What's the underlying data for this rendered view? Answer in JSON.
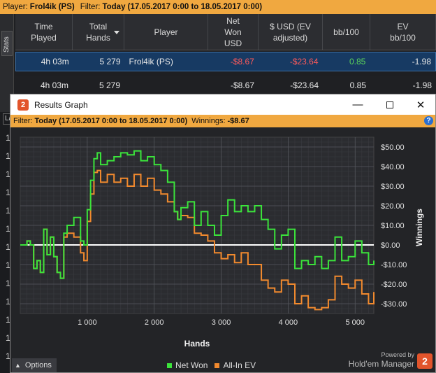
{
  "top_filter": {
    "player_label": "Player:",
    "player_value": "Frol4ik (PS)",
    "filter_label": "Filter:",
    "filter_value": "Today (17.05.2017 0:00 to 18.05.2017 0:00)"
  },
  "stats_tab_label": "Stats",
  "stats_table": {
    "headers": [
      "Time\nPlayed",
      "Total\nHands",
      "Player",
      "Net\nWon\nUSD",
      "$ USD (EV\nadjusted)",
      "bb/100",
      "EV\nbb/100"
    ],
    "sorted_column": "Total Hands",
    "rows": [
      {
        "time": "4h 03m",
        "hands": "5 279",
        "player": "Frol4ik (PS)",
        "net_won": "-$8.67",
        "ev_adjusted": "-$23.64",
        "bb100": "0.85",
        "ev_bb100": "-1.98"
      }
    ],
    "total": {
      "time": "4h 03m",
      "hands": "5 279",
      "player": "",
      "net_won": "-$8.67",
      "ev_adjusted": "-$23.64",
      "bb100": "0.85",
      "ev_bb100": "-1.98"
    }
  },
  "background_left_values": [
    "La",
    "1",
    "1",
    "1",
    "1",
    "1",
    "1",
    "1",
    "1",
    "1",
    "1",
    "1",
    "1",
    "1"
  ],
  "results_window": {
    "title": "Results Graph",
    "app_icon_text": "2",
    "minimize_label": "—",
    "close_label": "✕",
    "filter_label": "Filter:",
    "filter_value": "Today (17.05.2017 0:00 to 18.05.2017 0:00)",
    "winnings_label": "Winnings:",
    "winnings_value": "-$8.67",
    "help_label": "?",
    "options_label": "Options",
    "options_caret": "▲",
    "powered_line1": "Powered by",
    "powered_line2": "Hold'em Manager",
    "logo_text": "2"
  },
  "colors": {
    "accent_orange": "#f0a840",
    "net_won": "#3be33b",
    "allin_ev": "#f28a2e",
    "negative": "#ff5a5a",
    "positive": "#5bd35b",
    "selected_row": "#173a63"
  },
  "chart_data": {
    "type": "line",
    "xlabel": "Hands",
    "ylabel": "Winnings",
    "xlim": [
      0,
      5279
    ],
    "ylim": [
      -35,
      55
    ],
    "x_ticks": [
      1000,
      2000,
      3000,
      4000,
      5000
    ],
    "x_tick_labels": [
      "1 000",
      "2 000",
      "3 000",
      "4 000",
      "5 000"
    ],
    "y_ticks": [
      50,
      40,
      30,
      20,
      10,
      0,
      -10,
      -20,
      -30
    ],
    "y_tick_labels": [
      "$50.00",
      "$40.00",
      "$30.00",
      "$20.00",
      "$10.00",
      "$0.00",
      "-$10.00",
      "-$20.00",
      "-$30.00"
    ],
    "grid": true,
    "legend_position": "bottom",
    "series": [
      {
        "name": "Net Won",
        "color": "#3be33b",
        "x": [
          0,
          100,
          150,
          200,
          250,
          300,
          350,
          400,
          450,
          500,
          550,
          600,
          650,
          700,
          800,
          900,
          950,
          1000,
          1050,
          1100,
          1150,
          1200,
          1300,
          1400,
          1500,
          1600,
          1700,
          1800,
          1900,
          2000,
          2100,
          2200,
          2300,
          2350,
          2400,
          2500,
          2600,
          2700,
          2800,
          2900,
          3000,
          3100,
          3200,
          3300,
          3400,
          3500,
          3600,
          3700,
          3800,
          3900,
          4000,
          4100,
          4200,
          4300,
          4400,
          4500,
          4600,
          4700,
          4800,
          4900,
          5000,
          5100,
          5200,
          5279
        ],
        "y": [
          0,
          2,
          0,
          -12,
          -8,
          -14,
          8,
          -5,
          4,
          -6,
          -14,
          -17,
          6,
          10,
          14,
          2,
          0,
          18,
          33,
          44,
          47,
          41,
          43,
          45,
          47,
          46,
          48,
          43,
          45,
          41,
          38,
          32,
          17,
          13,
          19,
          22,
          10,
          17,
          10,
          5,
          15,
          23,
          17,
          20,
          17,
          20,
          13,
          8,
          -2,
          5,
          8,
          -12,
          -8,
          -10,
          -6,
          -12,
          -8,
          4,
          -8,
          -6,
          2,
          -4,
          -10,
          -8
        ]
      },
      {
        "name": "All-In EV",
        "color": "#f28a2e",
        "x": [
          0,
          100,
          150,
          200,
          250,
          300,
          350,
          400,
          450,
          500,
          550,
          600,
          650,
          700,
          800,
          900,
          950,
          1000,
          1050,
          1100,
          1150,
          1200,
          1300,
          1400,
          1500,
          1600,
          1700,
          1800,
          1900,
          2000,
          2100,
          2200,
          2300,
          2350,
          2400,
          2500,
          2600,
          2700,
          2800,
          2900,
          3000,
          3100,
          3200,
          3300,
          3400,
          3500,
          3600,
          3700,
          3800,
          3900,
          4000,
          4100,
          4200,
          4300,
          4400,
          4500,
          4600,
          4700,
          4800,
          4900,
          5000,
          5100,
          5200,
          5279
        ],
        "y": [
          0,
          2,
          0,
          -12,
          -8,
          -14,
          8,
          -5,
          4,
          -6,
          -14,
          -17,
          4,
          6,
          4,
          -4,
          -8,
          12,
          26,
          37,
          38,
          32,
          36,
          32,
          34,
          30,
          36,
          30,
          34,
          28,
          26,
          22,
          17,
          13,
          15,
          14,
          6,
          5,
          2,
          -4,
          -7,
          -5,
          -9,
          -4,
          -10,
          -10,
          -18,
          -22,
          -24,
          -18,
          -20,
          -30,
          -26,
          -32,
          -33,
          -32,
          -28,
          -16,
          -20,
          -22,
          -18,
          -25,
          -30,
          -24
        ]
      }
    ]
  }
}
